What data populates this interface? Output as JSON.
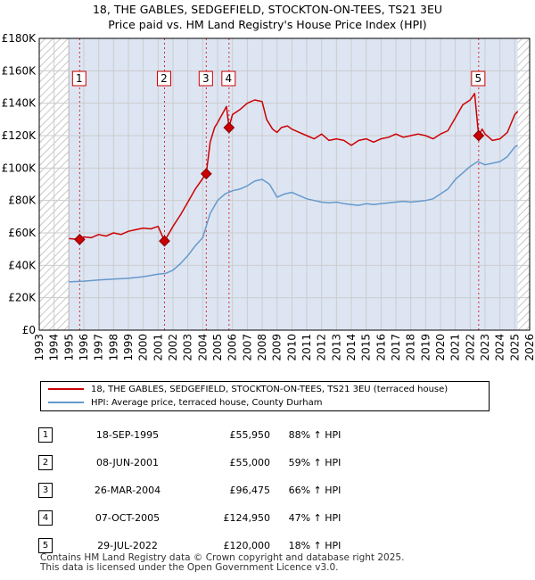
{
  "titles": {
    "line1": "18, THE GABLES, SEDGEFIELD, STOCKTON-ON-TEES, TS21 3EU",
    "line2": "Price paid vs. HM Land Registry's House Price Index (HPI)"
  },
  "colors": {
    "red": "#cc0000",
    "blue": "#6699cc",
    "grid": "#cccccc",
    "shade": "#dde5f3",
    "hatch": "#c8c8c8"
  },
  "chart_data": {
    "type": "line",
    "title": "Price paid vs. HM Land Registry's House Price Index (HPI)",
    "xlim": [
      1993,
      2026
    ],
    "ylim": [
      0,
      180000
    ],
    "y_ticks": [
      0,
      20000,
      40000,
      60000,
      80000,
      100000,
      120000,
      140000,
      160000,
      180000
    ],
    "y_tick_labels": [
      "£0",
      "£20K",
      "£40K",
      "£60K",
      "£80K",
      "£100K",
      "£120K",
      "£140K",
      "£160K",
      "£180K"
    ],
    "x_ticks": [
      1993,
      1994,
      1995,
      1996,
      1997,
      1998,
      1999,
      2000,
      2001,
      2002,
      2003,
      2004,
      2005,
      2006,
      2007,
      2008,
      2009,
      2010,
      2011,
      2012,
      2013,
      2014,
      2015,
      2016,
      2017,
      2018,
      2019,
      2020,
      2021,
      2022,
      2023,
      2024,
      2025,
      2026
    ],
    "data_range": [
      1995.0,
      2025.2
    ],
    "series": [
      {
        "name": "18, THE GABLES, SEDGEFIELD, STOCKTON-ON-TEES, TS21 3EU (terraced house)",
        "color": "#cc0000",
        "x": [
          1995.0,
          1995.72,
          1996.0,
          1996.5,
          1997.0,
          1997.5,
          1998.0,
          1998.5,
          1999.0,
          1999.5,
          2000.0,
          2000.5,
          2001.0,
          2001.43,
          2002.0,
          2002.5,
          2003.0,
          2003.5,
          2004.0,
          2004.24,
          2004.5,
          2004.8,
          2005.0,
          2005.3,
          2005.6,
          2005.77,
          2006.0,
          2006.5,
          2007.0,
          2007.5,
          2008.0,
          2008.3,
          2008.7,
          2009.0,
          2009.3,
          2009.7,
          2010.0,
          2010.5,
          2011.0,
          2011.5,
          2012.0,
          2012.5,
          2013.0,
          2013.5,
          2014.0,
          2014.5,
          2015.0,
          2015.5,
          2016.0,
          2016.5,
          2017.0,
          2017.5,
          2018.0,
          2018.5,
          2019.0,
          2019.5,
          2020.0,
          2020.5,
          2021.0,
          2021.5,
          2022.0,
          2022.3,
          2022.57,
          2022.8,
          2023.0,
          2023.5,
          2024.0,
          2024.5,
          2025.0,
          2025.2
        ],
        "values": [
          56500,
          55950,
          57500,
          57000,
          59000,
          58000,
          60000,
          59000,
          61000,
          62000,
          63000,
          62500,
          64000,
          55000,
          64000,
          71000,
          79000,
          87000,
          93500,
          96475,
          116000,
          125000,
          128000,
          133000,
          138000,
          124950,
          133000,
          136000,
          140000,
          142000,
          141000,
          130000,
          124000,
          122000,
          125000,
          126000,
          124000,
          122000,
          120000,
          118000,
          121000,
          117000,
          118000,
          117000,
          114000,
          117000,
          118000,
          116000,
          118000,
          119000,
          121000,
          119000,
          120000,
          121000,
          120000,
          118000,
          121000,
          123000,
          131000,
          139000,
          142000,
          146000,
          120000,
          124000,
          121000,
          117000,
          118000,
          122000,
          133000,
          135000
        ]
      },
      {
        "name": "HPI: Average price, terraced house, County Durham",
        "color": "#6699cc",
        "x": [
          1995.0,
          1996.0,
          1997.0,
          1998.0,
          1999.0,
          2000.0,
          2001.0,
          2001.5,
          2002.0,
          2002.5,
          2003.0,
          2003.5,
          2004.0,
          2004.5,
          2005.0,
          2005.5,
          2006.0,
          2006.5,
          2007.0,
          2007.5,
          2008.0,
          2008.5,
          2009.0,
          2009.5,
          2010.0,
          2010.5,
          2011.0,
          2011.5,
          2012.0,
          2012.5,
          2013.0,
          2013.5,
          2014.0,
          2014.5,
          2015.0,
          2015.5,
          2016.0,
          2016.5,
          2017.0,
          2017.5,
          2018.0,
          2018.5,
          2019.0,
          2019.5,
          2020.0,
          2020.5,
          2021.0,
          2021.5,
          2022.0,
          2022.5,
          2023.0,
          2023.5,
          2024.0,
          2024.5,
          2025.0,
          2025.2
        ],
        "values": [
          29800,
          30200,
          31000,
          31500,
          32000,
          33000,
          34500,
          35000,
          37000,
          41000,
          46000,
          52000,
          57000,
          72000,
          80000,
          84000,
          86000,
          87000,
          89000,
          92000,
          93000,
          90000,
          82000,
          84000,
          85000,
          83000,
          81000,
          80000,
          79000,
          78500,
          79000,
          78000,
          77500,
          77000,
          78000,
          77500,
          78000,
          78500,
          79000,
          79500,
          79000,
          79500,
          80000,
          81000,
          84000,
          87000,
          93000,
          97000,
          101000,
          104000,
          102000,
          103000,
          104000,
          107000,
          113000,
          114000
        ]
      }
    ],
    "sales": [
      {
        "num": "1",
        "x": 1995.72,
        "value": 55950
      },
      {
        "num": "2",
        "x": 2001.43,
        "value": 55000
      },
      {
        "num": "3",
        "x": 2004.24,
        "value": 96475
      },
      {
        "num": "4",
        "x": 2005.77,
        "value": 124950
      },
      {
        "num": "5",
        "x": 2022.57,
        "value": 120000
      }
    ]
  },
  "legend": {
    "red_label": "18, THE GABLES, SEDGEFIELD, STOCKTON-ON-TEES, TS21 3EU (terraced house)",
    "blue_label": "HPI: Average price, terraced house, County Durham"
  },
  "table": [
    {
      "num": "1",
      "date": "18-SEP-1995",
      "price": "£55,950",
      "hpi": "88% ↑ HPI"
    },
    {
      "num": "2",
      "date": "08-JUN-2001",
      "price": "£55,000",
      "hpi": "59% ↑ HPI"
    },
    {
      "num": "3",
      "date": "26-MAR-2004",
      "price": "£96,475",
      "hpi": "66% ↑ HPI"
    },
    {
      "num": "4",
      "date": "07-OCT-2005",
      "price": "£124,950",
      "hpi": "47% ↑ HPI"
    },
    {
      "num": "5",
      "date": "29-JUL-2022",
      "price": "£120,000",
      "hpi": "18% ↑ HPI"
    }
  ],
  "footer": {
    "line1": "Contains HM Land Registry data © Crown copyright and database right 2025.",
    "line2": "This data is licensed under the Open Government Licence v3.0."
  }
}
